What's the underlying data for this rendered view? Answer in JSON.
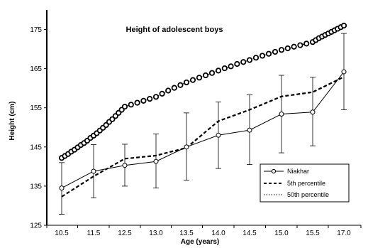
{
  "chart_data": {
    "type": "line",
    "title": "Height of adolescent boys",
    "xlabel": "Age (years)",
    "ylabel": "Height (cm)",
    "categories": [
      "10.5",
      "11.5",
      "12.5",
      "13.0",
      "13.5",
      "14.0",
      "14.5",
      "15.0",
      "15.5",
      "17.0"
    ],
    "ylim": [
      125,
      180
    ],
    "yticks": [
      125,
      135,
      145,
      155,
      165,
      175
    ],
    "grid": false,
    "legend_position": "bottom-right",
    "series": [
      {
        "name": "Niakhar",
        "style": "solid-with-open-circles",
        "values": [
          134.5,
          138.8,
          140.3,
          141.3,
          145.0,
          148.0,
          149.3,
          153.4,
          153.9,
          164.2
        ],
        "error_low": [
          127.8,
          132.0,
          135.0,
          134.5,
          136.5,
          139.5,
          140.5,
          143.5,
          145.3,
          154.5
        ],
        "error_high": [
          141.0,
          145.6,
          145.7,
          148.3,
          153.7,
          156.5,
          158.3,
          163.3,
          162.8,
          174.0
        ]
      },
      {
        "name": "5th percentile",
        "style": "dashed",
        "values": [
          132.3,
          137.5,
          142.0,
          142.8,
          144.8,
          151.6,
          154.5,
          157.9,
          159.0,
          162.9
        ]
      },
      {
        "name": "50th percentile",
        "style": "dotted-with-markers",
        "x": [
          10.5,
          10.6,
          10.7,
          10.8,
          10.9,
          11.0,
          11.1,
          11.2,
          11.3,
          11.4,
          11.5,
          11.6,
          11.7,
          11.8,
          11.9,
          12.0,
          12.1,
          12.2,
          12.3,
          12.4,
          12.5,
          12.6,
          12.7,
          12.8,
          12.9,
          13.0,
          13.1,
          13.2,
          13.3,
          13.4,
          13.5,
          13.6,
          13.7,
          13.8,
          13.9,
          14.0,
          14.1,
          14.2,
          14.3,
          14.4,
          14.5,
          14.6,
          14.7,
          14.8,
          14.9,
          15.0,
          15.1,
          15.2,
          15.3,
          15.4,
          15.5,
          15.65,
          15.8,
          15.95,
          16.1,
          16.25,
          16.4,
          16.55,
          16.7,
          16.85,
          17.0
        ],
        "values": [
          142.2,
          142.7,
          143.2,
          143.8,
          144.3,
          144.9,
          145.5,
          146.0,
          146.6,
          147.3,
          147.9,
          148.5,
          149.2,
          149.9,
          150.6,
          151.4,
          152.1,
          152.9,
          153.7,
          154.5,
          155.3,
          155.8,
          156.3,
          156.8,
          157.3,
          157.8,
          158.6,
          159.4,
          160.1,
          160.8,
          161.5,
          162.1,
          162.7,
          163.3,
          163.9,
          164.5,
          165.1,
          165.6,
          166.2,
          166.7,
          167.2,
          167.8,
          168.3,
          168.8,
          169.3,
          169.8,
          170.2,
          170.6,
          171.0,
          171.4,
          171.8,
          172.3,
          172.8,
          173.2,
          173.6,
          174.0,
          174.4,
          174.8,
          175.2,
          175.6,
          176.0
        ]
      }
    ]
  }
}
